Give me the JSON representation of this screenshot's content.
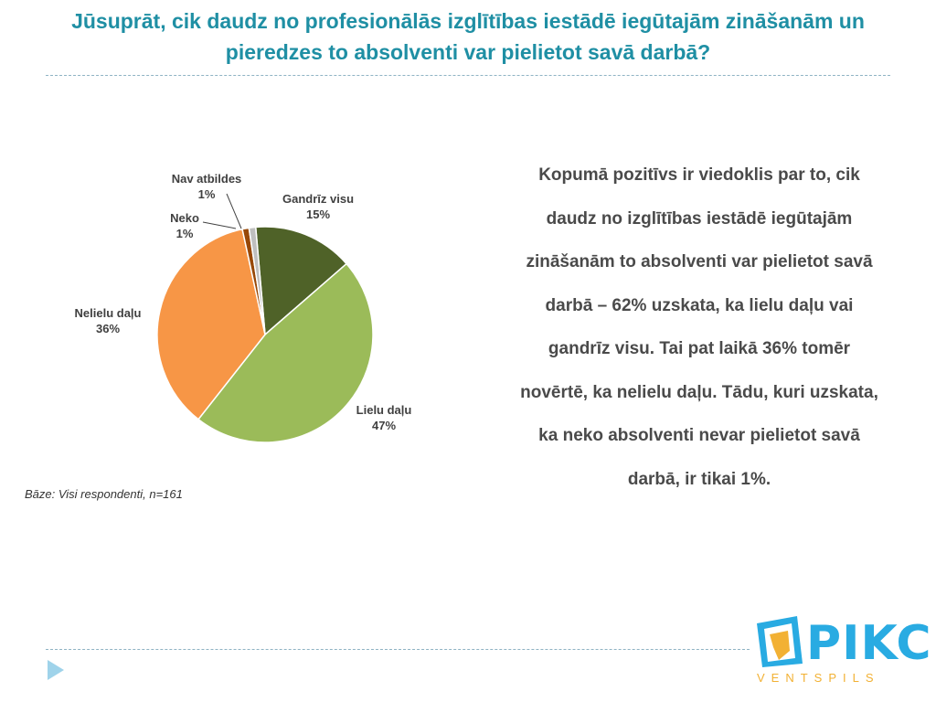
{
  "title": "Jūsuprāt, cik daudz no profesionālās izglītības iestādē iegūtajām zināšanām un pieredzes to absolventi var pielietot savā darbā?",
  "summary": "Kopumā pozitīvs ir viedoklis par to, cik daudz no izglītības iestādē iegūtajām zināšanām to absolventi var pielietot savā darbā – 62% uzskata, ka lielu daļu vai gandrīz visu. Tai pat laikā 36% tomēr novērtē, ka nelielu daļu. Tādu, kuri uzskata, ka neko absolventi nevar pielietot savā darbā, ir tikai 1%.",
  "base_note": "Bāze: Visi respondenti, n=161",
  "logo": {
    "name": "PIKC",
    "subtitle": "VENTSPILS",
    "primary_color": "#29abe2",
    "secondary_color": "#f2b134"
  },
  "chart_data": {
    "type": "pie",
    "title": "",
    "slices": [
      {
        "label": "Gandrīz visu",
        "value": 15,
        "value_label": "15%",
        "color": "#4f6228"
      },
      {
        "label": "Lielu daļu",
        "value": 47,
        "value_label": "47%",
        "color": "#9bbb59"
      },
      {
        "label": "Nelielu daļu",
        "value": 36,
        "value_label": "36%",
        "color": "#f79646"
      },
      {
        "label": "Neko",
        "value": 1,
        "value_label": "1%",
        "color": "#984807"
      },
      {
        "label": "Nav atbildes",
        "value": 1,
        "value_label": "1%",
        "color": "#bfbfbf"
      }
    ],
    "legend": "none"
  }
}
